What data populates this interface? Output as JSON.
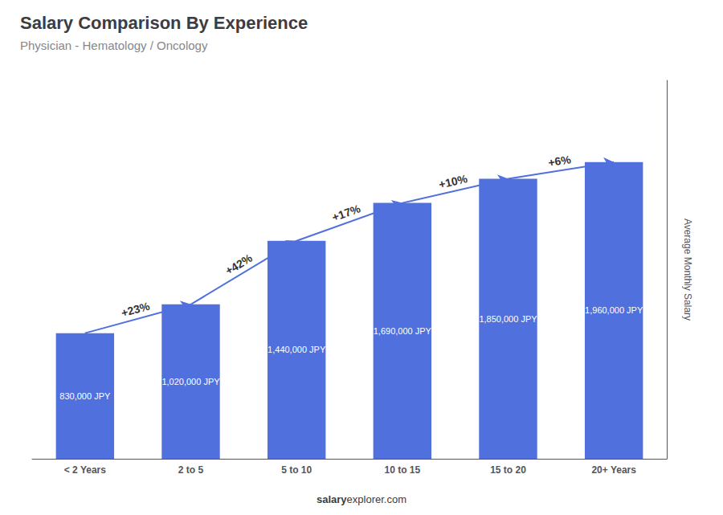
{
  "chart_data": {
    "type": "bar",
    "title": "Salary Comparison By Experience",
    "subtitle": "Physician - Hematology / Oncology",
    "ylabel": "Average Monthly Salary",
    "categories": [
      "< 2 Years",
      "2 to 5",
      "5 to 10",
      "10 to 15",
      "15 to 20",
      "20+ Years"
    ],
    "values": [
      830000,
      1020000,
      1440000,
      1690000,
      1850000,
      1960000
    ],
    "value_labels": [
      "830,000 JPY",
      "1,020,000 JPY",
      "1,440,000 JPY",
      "1,690,000 JPY",
      "1,850,000 JPY",
      "1,960,000 JPY"
    ],
    "data_labels": true,
    "annotations": [
      {
        "text": "+23%",
        "from": "< 2 Years",
        "to": "2 to 5"
      },
      {
        "text": "+42%",
        "from": "2 to 5",
        "to": "5 to 10"
      },
      {
        "text": "+17%",
        "from": "5 to 10",
        "to": "10 to 15"
      },
      {
        "text": "+10%",
        "from": "10 to 15",
        "to": "15 to 20"
      },
      {
        "text": "+6%",
        "from": "15 to 20",
        "to": "20+ Years"
      }
    ],
    "footer": [
      "salary",
      "explorer.com"
    ],
    "ylim": [
      0,
      2500000
    ],
    "tick_labels": "x",
    "grid": false
  }
}
